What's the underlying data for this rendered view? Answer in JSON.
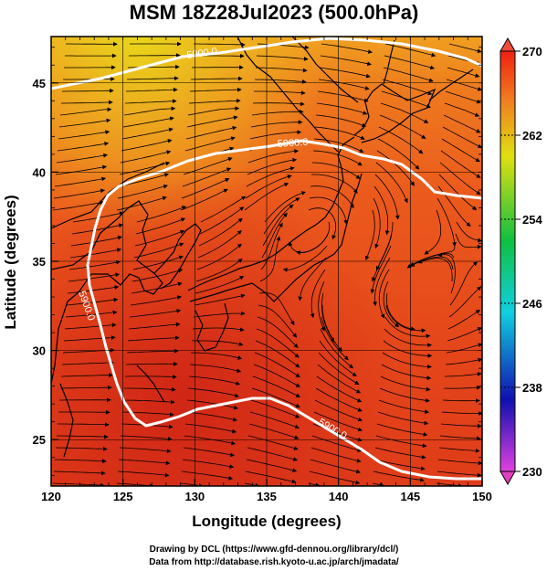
{
  "title": "MSM 18Z28Jul2023 (500.0hPa)",
  "xlabel": "Longitude (degrees)",
  "ylabel": "Latitude  (degrees)",
  "credits": [
    "Drawing by DCL (https://www.gfd-dennou.org/library/dcl/)",
    "Data from http://database.rish.kyoto-u.ac.jp/arch/jmadata/"
  ],
  "contour_labels": [
    "5900.0",
    "5900.0",
    "5900.0",
    "5900.0"
  ],
  "colors": {
    "field_warm": "#e8401a",
    "field_hot": "#d82418",
    "field_yellow": "#e8d81a",
    "contour": "#ffffff",
    "coast": "#000000"
  },
  "chart_data": {
    "type": "heatmap",
    "subtype": "map with streamlines and geopotential-height contour",
    "x_ticks": [
      120,
      125,
      130,
      135,
      140,
      145,
      150
    ],
    "y_ticks": [
      25,
      30,
      35,
      40,
      45
    ],
    "xlim": [
      120,
      150
    ],
    "ylim": [
      22.4,
      47.6
    ],
    "grid": true,
    "colorbar": {
      "ticks": [
        230,
        238,
        246,
        254,
        262,
        270
      ],
      "range": [
        230,
        270
      ],
      "stops": [
        "#e040e0",
        "#1010b0",
        "#10d0e0",
        "#10c040",
        "#e0e010",
        "#f02010"
      ]
    },
    "contour_level": 5900.0
  }
}
